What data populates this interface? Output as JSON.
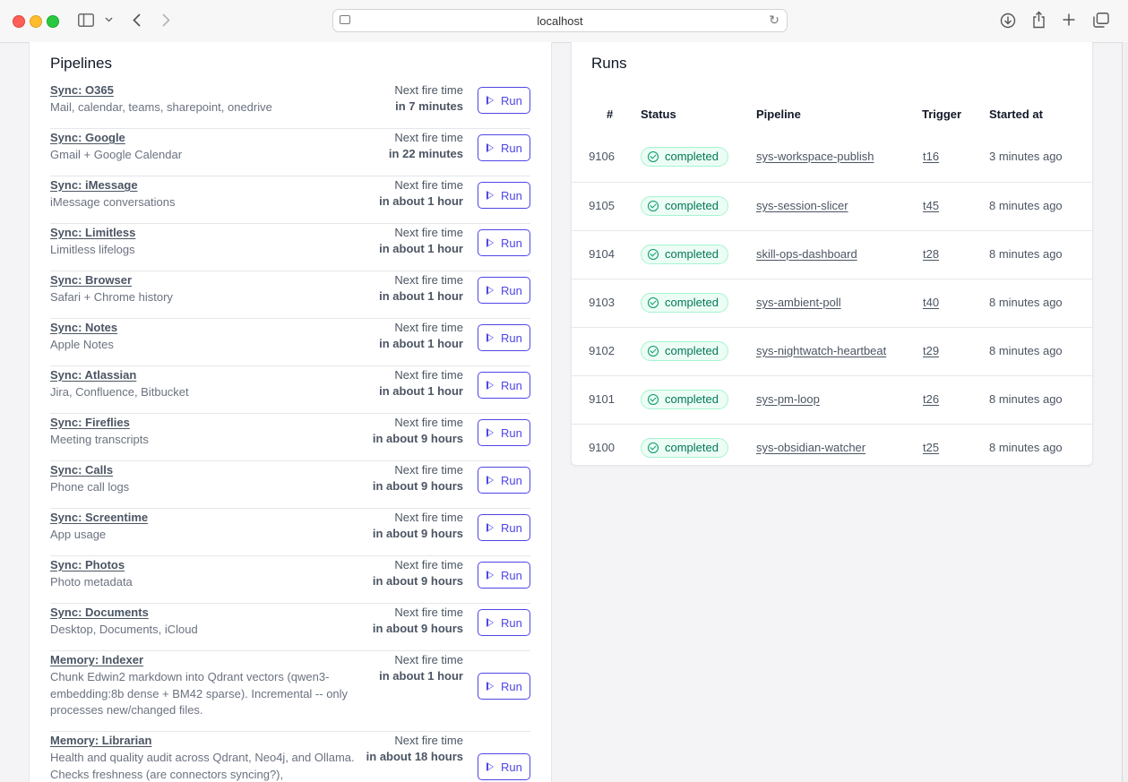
{
  "browser": {
    "address": "localhost"
  },
  "pipelines": {
    "title": "Pipelines",
    "fire_label": "Next fire time",
    "run_label": "Run",
    "items": [
      {
        "name": "Sync: O365",
        "desc": "Mail, calendar, teams, sharepoint, onedrive",
        "next": "in 7 minutes"
      },
      {
        "name": "Sync: Google",
        "desc": "Gmail + Google Calendar",
        "next": "in 22 minutes"
      },
      {
        "name": "Sync: iMessage",
        "desc": "iMessage conversations",
        "next": "in about 1 hour"
      },
      {
        "name": "Sync: Limitless",
        "desc": "Limitless lifelogs",
        "next": "in about 1 hour"
      },
      {
        "name": "Sync: Browser",
        "desc": "Safari + Chrome history",
        "next": "in about 1 hour"
      },
      {
        "name": "Sync: Notes",
        "desc": "Apple Notes",
        "next": "in about 1 hour"
      },
      {
        "name": "Sync: Atlassian",
        "desc": "Jira, Confluence, Bitbucket",
        "next": "in about 1 hour"
      },
      {
        "name": "Sync: Fireflies",
        "desc": "Meeting transcripts",
        "next": "in about 9 hours"
      },
      {
        "name": "Sync: Calls",
        "desc": "Phone call logs",
        "next": "in about 9 hours"
      },
      {
        "name": "Sync: Screentime",
        "desc": "App usage",
        "next": "in about 9 hours"
      },
      {
        "name": "Sync: Photos",
        "desc": "Photo metadata",
        "next": "in about 9 hours"
      },
      {
        "name": "Sync: Documents",
        "desc": "Desktop, Documents, iCloud",
        "next": "in about 9 hours"
      },
      {
        "name": "Memory: Indexer",
        "desc": "Chunk Edwin2 markdown into Qdrant vectors (qwen3-embedding:8b dense + BM42 sparse). Incremental -- only processes new/changed files.",
        "next": "in about 1 hour"
      },
      {
        "name": "Memory: Librarian",
        "desc": "Health and quality audit across Qdrant, Neo4j, and Ollama. Checks freshness (are connectors syncing?),",
        "next": "in about 18 hours"
      }
    ]
  },
  "runs": {
    "title": "Runs",
    "headers": {
      "num": "#",
      "status": "Status",
      "pipeline": "Pipeline",
      "trigger": "Trigger",
      "started": "Started at"
    },
    "status_color": "#047857",
    "rows": [
      {
        "id": "9106",
        "status": "completed",
        "pipeline": "sys-workspace-publish",
        "trigger": "t16",
        "started": "3 minutes ago"
      },
      {
        "id": "9105",
        "status": "completed",
        "pipeline": "sys-session-slicer",
        "trigger": "t45",
        "started": "8 minutes ago"
      },
      {
        "id": "9104",
        "status": "completed",
        "pipeline": "skill-ops-dashboard",
        "trigger": "t28",
        "started": "8 minutes ago"
      },
      {
        "id": "9103",
        "status": "completed",
        "pipeline": "sys-ambient-poll",
        "trigger": "t40",
        "started": "8 minutes ago"
      },
      {
        "id": "9102",
        "status": "completed",
        "pipeline": "sys-nightwatch-heartbeat",
        "trigger": "t29",
        "started": "8 minutes ago"
      },
      {
        "id": "9101",
        "status": "completed",
        "pipeline": "sys-pm-loop",
        "trigger": "t26",
        "started": "8 minutes ago"
      },
      {
        "id": "9100",
        "status": "completed",
        "pipeline": "sys-obsidian-watcher",
        "trigger": "t25",
        "started": "8 minutes ago"
      }
    ]
  }
}
